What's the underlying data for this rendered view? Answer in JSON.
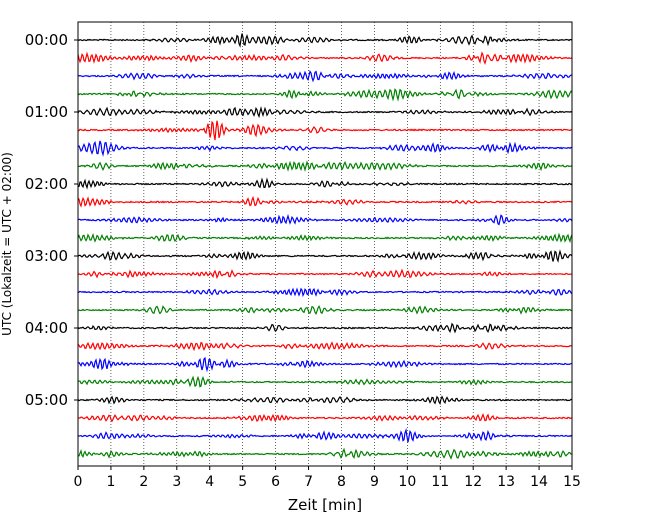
{
  "chart_data": {
    "type": "line",
    "title": "",
    "xlabel": "Zeit  [min]",
    "ylabel": "UTC (Lokalzeit = UTC + 02:00)",
    "xlim": [
      0,
      15
    ],
    "xticks": [
      "0",
      "1",
      "2",
      "3",
      "4",
      "5",
      "6",
      "7",
      "8",
      "9",
      "10",
      "11",
      "12",
      "13",
      "14",
      "15"
    ],
    "ytick_labels": [
      "00:00",
      "01:00",
      "02:00",
      "03:00",
      "04:00",
      "05:00"
    ],
    "trace_interval_min": 15,
    "trace_count": 24,
    "trace_colors": [
      "#000000",
      "#ff0000",
      "#0000ff",
      "#008000"
    ],
    "grid": "vertical dotted lines at each minute",
    "legend": "none"
  }
}
